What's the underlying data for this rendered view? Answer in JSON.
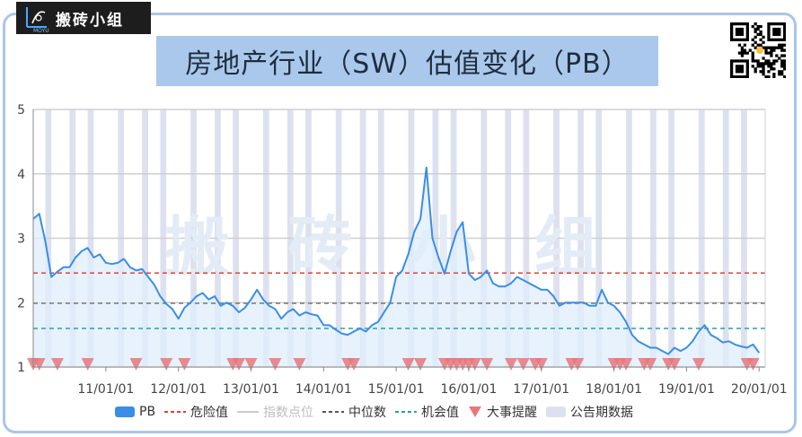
{
  "brand": {
    "name": "搬砖小组",
    "sub": "MOYU"
  },
  "watermark": "搬 砖 小 组",
  "chart_data": {
    "type": "line",
    "title": "房地产行业（SW）估值变化（PB）",
    "y_ticks": [
      "1",
      "2",
      "3",
      "4",
      "5"
    ],
    "ylim": [
      1,
      5
    ],
    "x_ticks": [
      "11/01/01",
      "12/01/01",
      "13/01/01",
      "14/01/01",
      "15/01/01",
      "16/01/01",
      "17/01/01",
      "18/01/01",
      "19/01/01",
      "20/01/01"
    ],
    "xlim": [
      "2010-01-01",
      "2020-02-01"
    ],
    "danger_value": 2.46,
    "median_value": 1.99,
    "opportunity_value": 1.6,
    "series": [
      {
        "name": "PB",
        "x": [
          "2010-01",
          "2010-02",
          "2010-03",
          "2010-04",
          "2010-05",
          "2010-06",
          "2010-07",
          "2010-08",
          "2010-09",
          "2010-10",
          "2010-11",
          "2010-12",
          "2011-01",
          "2011-02",
          "2011-03",
          "2011-04",
          "2011-05",
          "2011-06",
          "2011-07",
          "2011-08",
          "2011-09",
          "2011-10",
          "2011-11",
          "2011-12",
          "2012-01",
          "2012-02",
          "2012-03",
          "2012-04",
          "2012-05",
          "2012-06",
          "2012-07",
          "2012-08",
          "2012-09",
          "2012-10",
          "2012-11",
          "2012-12",
          "2013-01",
          "2013-02",
          "2013-03",
          "2013-04",
          "2013-05",
          "2013-06",
          "2013-07",
          "2013-08",
          "2013-09",
          "2013-10",
          "2013-11",
          "2013-12",
          "2014-01",
          "2014-02",
          "2014-03",
          "2014-04",
          "2014-05",
          "2014-06",
          "2014-07",
          "2014-08",
          "2014-09",
          "2014-10",
          "2014-11",
          "2014-12",
          "2015-01",
          "2015-02",
          "2015-03",
          "2015-04",
          "2015-05",
          "2015-06",
          "2015-07",
          "2015-08",
          "2015-09",
          "2015-10",
          "2015-11",
          "2015-12",
          "2016-01",
          "2016-02",
          "2016-03",
          "2016-04",
          "2016-05",
          "2016-06",
          "2016-07",
          "2016-08",
          "2016-09",
          "2016-10",
          "2016-11",
          "2016-12",
          "2017-01",
          "2017-02",
          "2017-03",
          "2017-04",
          "2017-05",
          "2017-06",
          "2017-07",
          "2017-08",
          "2017-09",
          "2017-10",
          "2017-11",
          "2017-12",
          "2018-01",
          "2018-02",
          "2018-03",
          "2018-04",
          "2018-05",
          "2018-06",
          "2018-07",
          "2018-08",
          "2018-09",
          "2018-10",
          "2018-11",
          "2018-12",
          "2019-01",
          "2019-02",
          "2019-03",
          "2019-04",
          "2019-05",
          "2019-06",
          "2019-07",
          "2019-08",
          "2019-09",
          "2019-10",
          "2019-11",
          "2019-12",
          "2020-01"
        ],
        "values": [
          3.3,
          3.38,
          2.95,
          2.4,
          2.48,
          2.55,
          2.55,
          2.7,
          2.8,
          2.85,
          2.7,
          2.75,
          2.62,
          2.6,
          2.62,
          2.68,
          2.55,
          2.5,
          2.52,
          2.4,
          2.28,
          2.1,
          1.98,
          1.9,
          1.75,
          1.92,
          2.0,
          2.1,
          2.15,
          2.05,
          2.1,
          1.95,
          2.0,
          1.95,
          1.85,
          1.92,
          2.05,
          2.2,
          2.05,
          1.95,
          1.9,
          1.75,
          1.85,
          1.9,
          1.8,
          1.85,
          1.82,
          1.8,
          1.65,
          1.65,
          1.58,
          1.52,
          1.5,
          1.55,
          1.6,
          1.55,
          1.65,
          1.7,
          1.85,
          2.0,
          2.4,
          2.5,
          2.75,
          3.1,
          3.3,
          4.1,
          3.0,
          2.7,
          2.45,
          2.8,
          3.1,
          3.25,
          2.45,
          2.35,
          2.4,
          2.5,
          2.3,
          2.25,
          2.25,
          2.3,
          2.4,
          2.35,
          2.3,
          2.25,
          2.2,
          2.2,
          2.1,
          1.95,
          2.0,
          2.0,
          2.0,
          2.0,
          1.95,
          1.95,
          2.2,
          2.0,
          1.95,
          1.85,
          1.7,
          1.5,
          1.4,
          1.35,
          1.3,
          1.3,
          1.25,
          1.2,
          1.3,
          1.25,
          1.3,
          1.4,
          1.55,
          1.65,
          1.5,
          1.45,
          1.38,
          1.4,
          1.35,
          1.32,
          1.3,
          1.35,
          1.22
        ]
      }
    ],
    "event_marker_dates": [
      "2010-01",
      "2010-02",
      "2010-05",
      "2010-10",
      "2011-06",
      "2011-11",
      "2012-02",
      "2012-10",
      "2012-11",
      "2013-01",
      "2013-05",
      "2013-09",
      "2014-05",
      "2014-06",
      "2015-03",
      "2015-05",
      "2015-09",
      "2015-10",
      "2015-11",
      "2015-12",
      "2016-01",
      "2016-02",
      "2016-04",
      "2016-08",
      "2016-10",
      "2016-12",
      "2017-01",
      "2017-06",
      "2017-07",
      "2018-01",
      "2018-02",
      "2018-03",
      "2018-06",
      "2018-07",
      "2018-10",
      "2018-11",
      "2019-03",
      "2019-11",
      "2019-12"
    ],
    "announcement_periods": [
      [
        "2010-03",
        "2010-04"
      ],
      [
        "2010-07",
        "2010-08"
      ],
      [
        "2010-10",
        "2010-11"
      ],
      [
        "2011-03",
        "2011-04"
      ],
      [
        "2011-07",
        "2011-08"
      ],
      [
        "2011-10",
        "2011-11"
      ],
      [
        "2012-03",
        "2012-04"
      ],
      [
        "2012-07",
        "2012-08"
      ],
      [
        "2012-10",
        "2012-11"
      ],
      [
        "2013-03",
        "2013-04"
      ],
      [
        "2013-07",
        "2013-08"
      ],
      [
        "2013-10",
        "2013-11"
      ],
      [
        "2014-03",
        "2014-04"
      ],
      [
        "2014-07",
        "2014-08"
      ],
      [
        "2014-10",
        "2014-11"
      ],
      [
        "2015-03",
        "2015-04"
      ],
      [
        "2015-07",
        "2015-08"
      ],
      [
        "2015-10",
        "2015-11"
      ],
      [
        "2016-03",
        "2016-04"
      ],
      [
        "2016-07",
        "2016-08"
      ],
      [
        "2016-10",
        "2016-11"
      ],
      [
        "2017-03",
        "2017-04"
      ],
      [
        "2017-07",
        "2017-08"
      ],
      [
        "2017-10",
        "2017-11"
      ],
      [
        "2018-03",
        "2018-04"
      ],
      [
        "2018-07",
        "2018-08"
      ],
      [
        "2018-10",
        "2018-11"
      ],
      [
        "2019-03",
        "2019-04"
      ],
      [
        "2019-07",
        "2019-08"
      ],
      [
        "2019-10",
        "2019-11"
      ]
    ],
    "legend": [
      "PB",
      "危险值",
      "指数点位",
      "中位数",
      "机会值",
      "大事提醒",
      "公告期数据"
    ],
    "colors": {
      "pb": "#3a8ee6",
      "pb_fill": "#dfeefb",
      "danger": "#e0413b",
      "median": "#777777",
      "opportunity": "#27a3a3",
      "index_point": "#cccccc",
      "event": "#e8777c",
      "announcement": "#dde1ef"
    }
  }
}
